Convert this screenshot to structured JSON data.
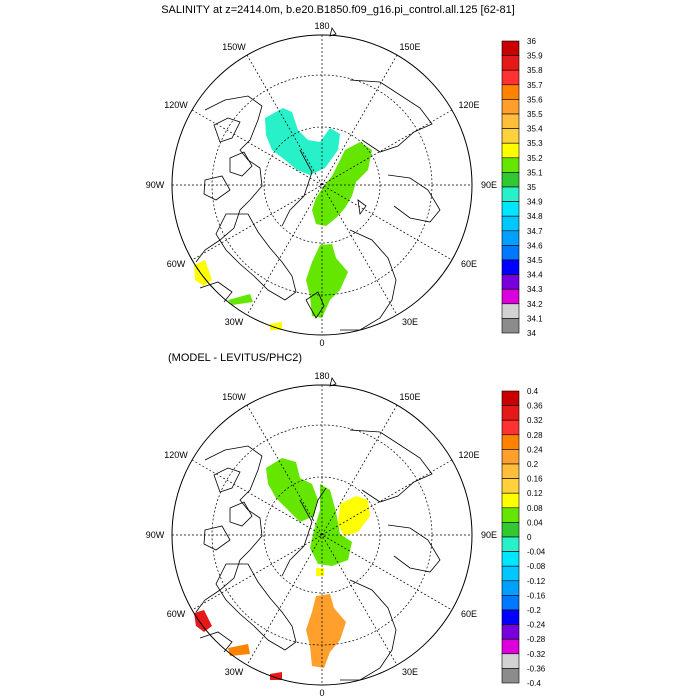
{
  "top_panel": {
    "title": "SALINITY at z=2414.0m, b.e20.B1850.f09_g16.pi_control.all.125 [62-81]",
    "lon_labels": {
      "deg180": "180",
      "w150": "150W",
      "e150": "150E",
      "w120": "120W",
      "e120": "120E",
      "w90": "90W",
      "e90": "90E",
      "w60": "60W",
      "e60": "60E",
      "w30": "30W",
      "e30": "30E",
      "deg0": "0"
    },
    "colorbar": {
      "labels": [
        "36",
        "35.9",
        "35.8",
        "35.7",
        "35.6",
        "35.5",
        "35.4",
        "35.3",
        "35.2",
        "35.1",
        "35",
        "34.9",
        "34.8",
        "34.7",
        "34.6",
        "34.5",
        "34.4",
        "34.3",
        "34.2",
        "34.1",
        "34"
      ],
      "colors": [
        "#c80000",
        "#e61919",
        "#ff3232",
        "#ff8200",
        "#ffa02d",
        "#ffbe3c",
        "#ffd23c",
        "#ffff00",
        "#64e600",
        "#32c832",
        "#28f0c8",
        "#00e6ff",
        "#00c8ff",
        "#00a0ff",
        "#0078ff",
        "#0000ff",
        "#7800dc",
        "#dc00dc",
        "#d2d2d2",
        "#8c8c8c"
      ]
    }
  },
  "bottom_panel": {
    "title": "(MODEL - LEVITUS/PHC2)",
    "lon_labels": {
      "deg180": "180",
      "w150": "150W",
      "e150": "150E",
      "w120": "120W",
      "e120": "120E",
      "w90": "90W",
      "e90": "90E",
      "w60": "60W",
      "e60": "60E",
      "w30": "30W",
      "e30": "30E",
      "deg0": "0"
    },
    "colorbar": {
      "labels": [
        "0.4",
        "0.36",
        "0.32",
        "0.28",
        "0.24",
        "0.2",
        "0.16",
        "0.12",
        "0.08",
        "0.04",
        "0",
        "-0.04",
        "-0.08",
        "-0.12",
        "-0.16",
        "-0.2",
        "-0.24",
        "-0.28",
        "-0.32",
        "-0.36",
        "-0.4"
      ],
      "colors": [
        "#c80000",
        "#e61919",
        "#ff3232",
        "#ff8200",
        "#ffa02d",
        "#ffbe3c",
        "#ffd23c",
        "#ffff00",
        "#64e600",
        "#32c832",
        "#28f0c8",
        "#00e6ff",
        "#00c8ff",
        "#00a0ff",
        "#0078ff",
        "#0000ff",
        "#7800dc",
        "#dc00dc",
        "#d2d2d2",
        "#8c8c8c"
      ]
    }
  }
}
